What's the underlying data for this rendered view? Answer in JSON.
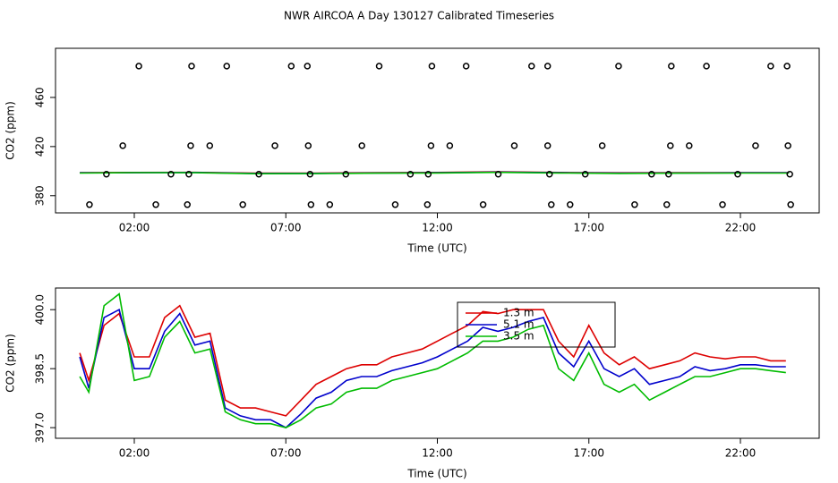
{
  "chart_data": [
    {
      "type": "scatter",
      "title": "NWR AIRCOA A  Day 130127  Calibrated Timeseries",
      "xlabel": "Time (UTC)",
      "ylabel": "CO2 (ppm)",
      "xlim": [
        -0.6,
        24.6
      ],
      "ylim": [
        366,
        500
      ],
      "xticks": [
        {
          "value": 2,
          "label": "02:00"
        },
        {
          "value": 7,
          "label": "07:00"
        },
        {
          "value": 12,
          "label": "12:00"
        },
        {
          "value": 17,
          "label": "17:00"
        },
        {
          "value": 22,
          "label": "22:00"
        }
      ],
      "yticks": [
        380,
        420,
        460
      ],
      "points": {
        "x": [
          2.15,
          3.89,
          5.05,
          7.18,
          7.71,
          10.08,
          11.82,
          12.95,
          15.11,
          15.64,
          17.98,
          19.72,
          20.88,
          23.0,
          23.54,
          1.62,
          3.86,
          4.49,
          6.64,
          7.74,
          9.51,
          11.79,
          12.41,
          14.54,
          15.64,
          17.44,
          19.69,
          20.31,
          22.5,
          23.57,
          1.08,
          3.21,
          3.8,
          6.11,
          7.8,
          8.98,
          11.11,
          11.7,
          14.01,
          15.7,
          16.88,
          19.07,
          19.63,
          21.91,
          23.63,
          0.52,
          2.71,
          3.75,
          5.58,
          7.83,
          8.45,
          10.61,
          11.67,
          13.51,
          15.76,
          16.38,
          18.51,
          19.57,
          21.41,
          23.66
        ],
        "y": [
          485.5,
          485.5,
          485.5,
          485.5,
          485.5,
          485.5,
          485.5,
          485.5,
          485.5,
          485.5,
          485.5,
          485.5,
          485.5,
          485.5,
          485.5,
          420.7,
          420.7,
          420.7,
          420.7,
          420.7,
          420.7,
          420.7,
          420.7,
          420.7,
          420.7,
          420.7,
          420.7,
          420.7,
          420.7,
          420.7,
          397.5,
          397.5,
          397.5,
          397.5,
          397.5,
          397.5,
          397.5,
          397.5,
          397.5,
          397.5,
          397.5,
          397.5,
          397.5,
          397.5,
          397.5,
          372.7,
          372.7,
          372.7,
          372.7,
          372.7,
          372.7,
          372.7,
          372.7,
          372.7,
          372.7,
          372.7,
          372.7,
          372.7,
          372.7,
          372.7
        ],
        "color": "#000000"
      },
      "x": [
        0.2,
        2,
        4,
        6,
        8,
        10,
        12,
        14,
        16,
        18,
        20,
        22,
        23.6
      ],
      "series": [
        {
          "color": "#dd0000",
          "values": [
            398.7,
            398.9,
            399.0,
            398.3,
            398.4,
            398.7,
            398.9,
            399.4,
            398.9,
            398.6,
            398.7,
            398.8,
            398.8
          ]
        },
        {
          "color": "#0000cc",
          "values": [
            398.6,
            398.7,
            398.9,
            398.1,
            398.2,
            398.5,
            398.7,
            399.2,
            398.7,
            398.4,
            398.5,
            398.6,
            398.6
          ]
        },
        {
          "color": "#00bb00",
          "values": [
            398.4,
            398.8,
            398.7,
            397.9,
            398.0,
            398.3,
            398.5,
            399.0,
            398.5,
            398.1,
            398.3,
            398.4,
            398.4
          ]
        }
      ]
    },
    {
      "type": "line",
      "xlabel": "Time (UTC)",
      "ylabel": "CO2 (ppm)",
      "xlim": [
        -0.6,
        24.6
      ],
      "ylim": [
        396.73,
        400.55
      ],
      "xticks": [
        {
          "value": 2,
          "label": "02:00"
        },
        {
          "value": 7,
          "label": "07:00"
        },
        {
          "value": 12,
          "label": "12:00"
        },
        {
          "value": 17,
          "label": "17:00"
        },
        {
          "value": 22,
          "label": "22:00"
        }
      ],
      "yticks": [
        {
          "value": 397,
          "label": "397.0"
        },
        {
          "value": 398.5,
          "label": "398.5"
        },
        {
          "value": 400,
          "label": "400.0"
        }
      ],
      "x": [
        0.2,
        0.5,
        1,
        1.5,
        2,
        2.5,
        3,
        3.5,
        4,
        4.5,
        5,
        5.5,
        6,
        6.5,
        7,
        7.5,
        8,
        8.5,
        9,
        9.5,
        10,
        10.5,
        11,
        11.5,
        12,
        12.5,
        13,
        13.5,
        14,
        14.5,
        15,
        15.5,
        16,
        16.5,
        17,
        17.5,
        18,
        18.5,
        19,
        19.5,
        20,
        20.5,
        21,
        21.5,
        22,
        22.5,
        23,
        23.5
      ],
      "series": [
        {
          "name": "1.3 m",
          "color": "#dd0000",
          "values": [
            398.9,
            398.2,
            399.6,
            399.9,
            398.8,
            398.8,
            399.8,
            400.1,
            399.3,
            399.4,
            397.7,
            397.5,
            397.5,
            397.4,
            397.3,
            397.7,
            398.1,
            398.3,
            398.5,
            398.6,
            398.6,
            398.8,
            398.9,
            399.0,
            399.2,
            399.4,
            399.6,
            399.95,
            399.9,
            400.0,
            400.0,
            400.0,
            399.2,
            398.8,
            399.6,
            398.9,
            398.6,
            398.8,
            398.5,
            398.6,
            398.7,
            398.9,
            398.8,
            398.75,
            398.8,
            398.8,
            398.7,
            398.7
          ]
        },
        {
          "name": "5.1 m",
          "color": "#0000cc",
          "values": [
            398.8,
            398.0,
            399.8,
            400.0,
            398.5,
            398.5,
            399.45,
            399.9,
            399.1,
            399.2,
            397.5,
            397.3,
            397.2,
            397.2,
            397.0,
            397.35,
            397.75,
            397.9,
            398.2,
            398.3,
            398.3,
            398.45,
            398.55,
            398.65,
            398.8,
            399.0,
            399.2,
            399.55,
            399.45,
            399.55,
            399.7,
            399.8,
            398.9,
            398.55,
            399.2,
            398.5,
            398.3,
            398.5,
            398.1,
            398.2,
            398.3,
            398.55,
            398.45,
            398.5,
            398.6,
            398.6,
            398.55,
            398.55
          ]
        },
        {
          "name": "3.5 m",
          "color": "#00bb00",
          "values": [
            398.3,
            397.9,
            400.1,
            400.4,
            398.2,
            398.3,
            399.3,
            399.7,
            398.9,
            399.0,
            397.4,
            397.2,
            397.1,
            397.1,
            397.0,
            397.2,
            397.5,
            397.6,
            397.9,
            398.0,
            398.0,
            398.2,
            398.3,
            398.4,
            398.5,
            398.7,
            398.9,
            399.2,
            399.2,
            399.3,
            399.5,
            399.6,
            398.5,
            398.2,
            398.9,
            398.1,
            397.9,
            398.1,
            397.7,
            397.9,
            398.1,
            398.3,
            398.3,
            398.4,
            398.5,
            398.5,
            398.45,
            398.4
          ]
        }
      ]
    }
  ]
}
